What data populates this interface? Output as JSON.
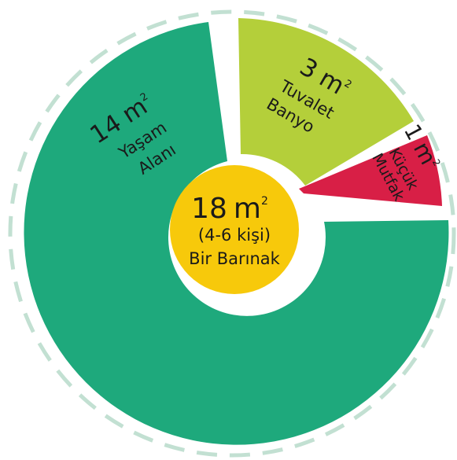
{
  "chart_data": {
    "type": "pie",
    "style": "donut",
    "center": {
      "value": "18",
      "unit": "m",
      "sup": "2",
      "line2": "(4-6 kişi)",
      "line3": "Bir Barınak",
      "color": "#f7c90b"
    },
    "slices": [
      {
        "value": 14,
        "unit": "m",
        "sup": "2",
        "label_lines": [
          "Yaşam",
          "Alanı"
        ],
        "color": "#1ea97c"
      },
      {
        "value": 3,
        "unit": "m",
        "sup": "2",
        "label_lines": [
          "Tuvalet",
          "Banyo"
        ],
        "color": "#b4cf3a"
      },
      {
        "value": 1,
        "unit": "m",
        "sup": "2",
        "label_lines": [
          "Küçük",
          "Mutfak"
        ],
        "color": "#d81f46"
      }
    ],
    "outer_ring": {
      "style": "dashed",
      "color": "#c2e0d2"
    }
  }
}
